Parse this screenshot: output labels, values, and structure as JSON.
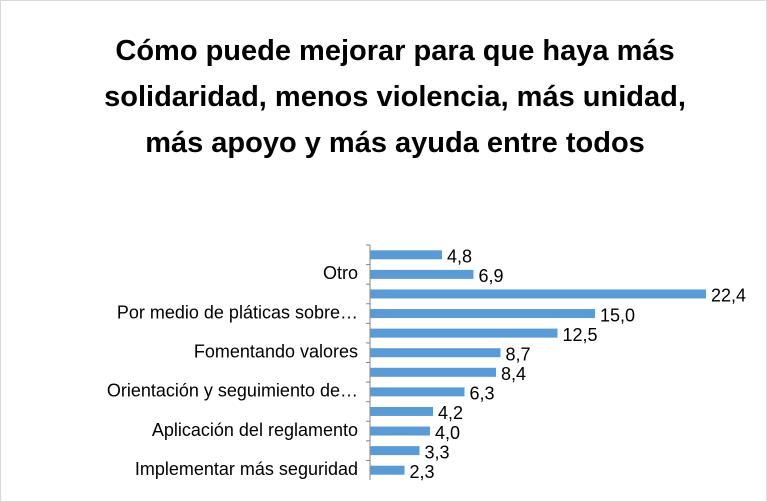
{
  "chart_data": {
    "type": "barh",
    "title": "Cómo puede mejorar para que haya más solidaridad, menos violencia, más unidad, más apoyo y más ayuda entre todos",
    "categories": [
      null,
      "Otro",
      null,
      "Por medio de pláticas sobre…",
      null,
      "Fomentando valores",
      null,
      "Orientación y seguimiento de…",
      null,
      "Aplicación del reglamento",
      null,
      "Implementar más seguridad"
    ],
    "values": [
      4.8,
      6.9,
      22.4,
      15.0,
      12.5,
      8.7,
      8.4,
      6.3,
      4.2,
      4.0,
      3.3,
      2.3
    ],
    "value_labels": [
      "4,8",
      "6,9",
      "22,4",
      "15,0",
      "12,5",
      "8,7",
      "8,4",
      "6,3",
      "4,2",
      "4,0",
      "3,3",
      "2,3"
    ],
    "color": "#5b9bd5",
    "xlim": [
      0,
      22.4
    ]
  }
}
